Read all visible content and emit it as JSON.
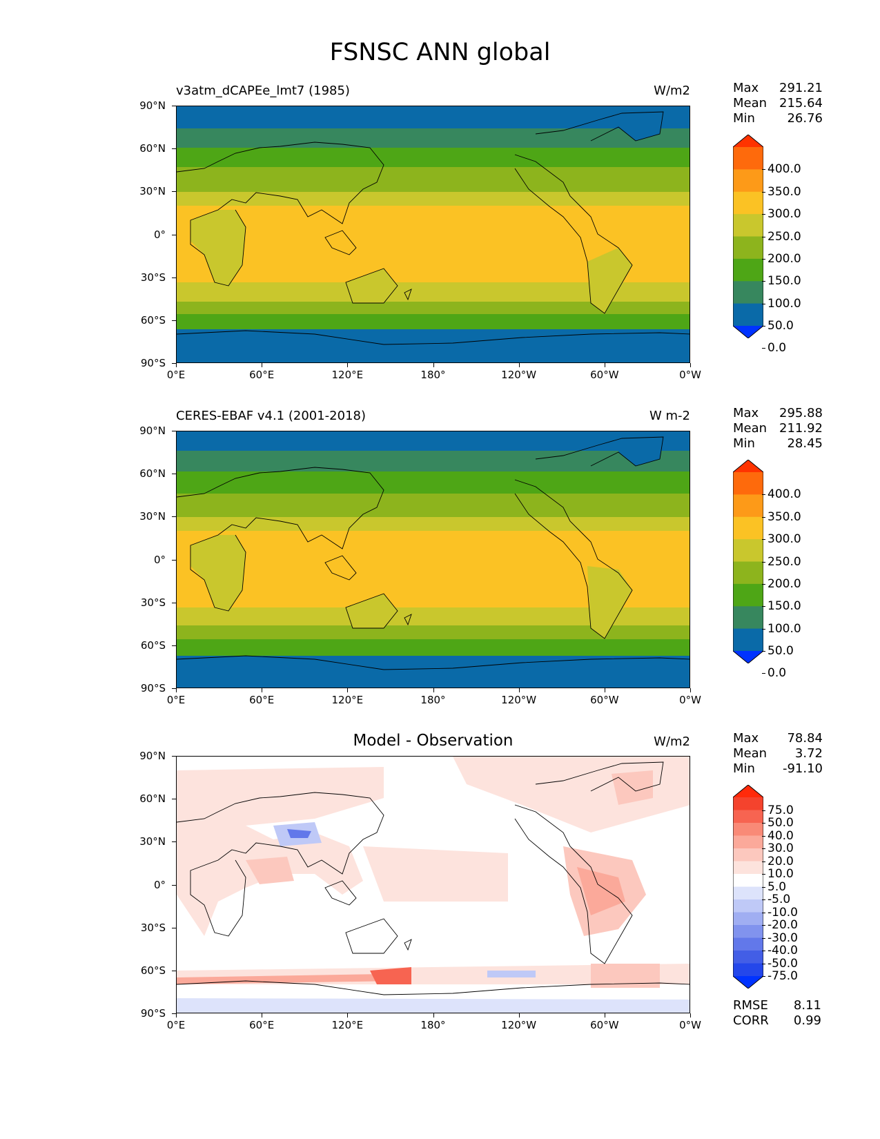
{
  "figure": {
    "title": "FSNSC ANN global"
  },
  "axes": {
    "lat_ticks": [
      "90°N",
      "60°N",
      "30°N",
      "0°",
      "30°S",
      "60°S",
      "90°S"
    ],
    "lon_ticks": [
      "0°E",
      "60°E",
      "120°E",
      "180°",
      "120°W",
      "60°W",
      "0°W"
    ]
  },
  "panels": [
    {
      "title": "v3atm_dCAPEe_lmt7 (1985)",
      "units": "W/m2",
      "stats": {
        "max_label": "Max",
        "max": "291.21",
        "mean_label": "Mean",
        "mean": "215.64",
        "min_label": "Min",
        "min": "26.76"
      },
      "colorbar": {
        "labels": [
          "400.0",
          "350.0",
          "300.0",
          "250.0",
          "200.0",
          "150.0",
          "100.0",
          "50.0",
          "0.0"
        ],
        "colors": [
          "#ff3300",
          "#fe6a0c",
          "#fd9a18",
          "#fbc224",
          "#c9c72d",
          "#8db41d",
          "#4ea616",
          "#37875e",
          "#0a6aa8",
          "#0033ff"
        ]
      }
    },
    {
      "title": "CERES-EBAF v4.1 (2001-2018)",
      "units": "W m-2",
      "stats": {
        "max_label": "Max",
        "max": "295.88",
        "mean_label": "Mean",
        "mean": "211.92",
        "min_label": "Min",
        "min": "28.45"
      },
      "colorbar": {
        "labels": [
          "400.0",
          "350.0",
          "300.0",
          "250.0",
          "200.0",
          "150.0",
          "100.0",
          "50.0",
          "0.0"
        ],
        "colors": [
          "#ff3300",
          "#fe6a0c",
          "#fd9a18",
          "#fbc224",
          "#c9c72d",
          "#8db41d",
          "#4ea616",
          "#37875e",
          "#0a6aa8",
          "#0033ff"
        ]
      }
    },
    {
      "title": "Model - Observation",
      "units": "W/m2",
      "stats": {
        "max_label": "Max",
        "max": "78.84",
        "mean_label": "Mean",
        "mean": "3.72",
        "min_label": "Min",
        "min": "-91.10"
      },
      "colorbar": {
        "labels": [
          "75.0",
          "50.0",
          "40.0",
          "30.0",
          "20.0",
          "10.0",
          "5.0",
          "-5.0",
          "-10.0",
          "-20.0",
          "-30.0",
          "-40.0",
          "-50.0",
          "-75.0"
        ],
        "colors": [
          "#ff2a0a",
          "#f4432d",
          "#f76451",
          "#f98a77",
          "#fba99a",
          "#fcc8be",
          "#fde3dd",
          "#ffffff",
          "#dde3fb",
          "#bfc9f7",
          "#a0aef2",
          "#8193ee",
          "#6278ea",
          "#435ee6",
          "#2447ea",
          "#0033ff"
        ]
      },
      "rmse": {
        "rmse_label": "RMSE",
        "rmse": "8.11",
        "corr_label": "CORR",
        "corr": "0.99"
      }
    }
  ]
}
